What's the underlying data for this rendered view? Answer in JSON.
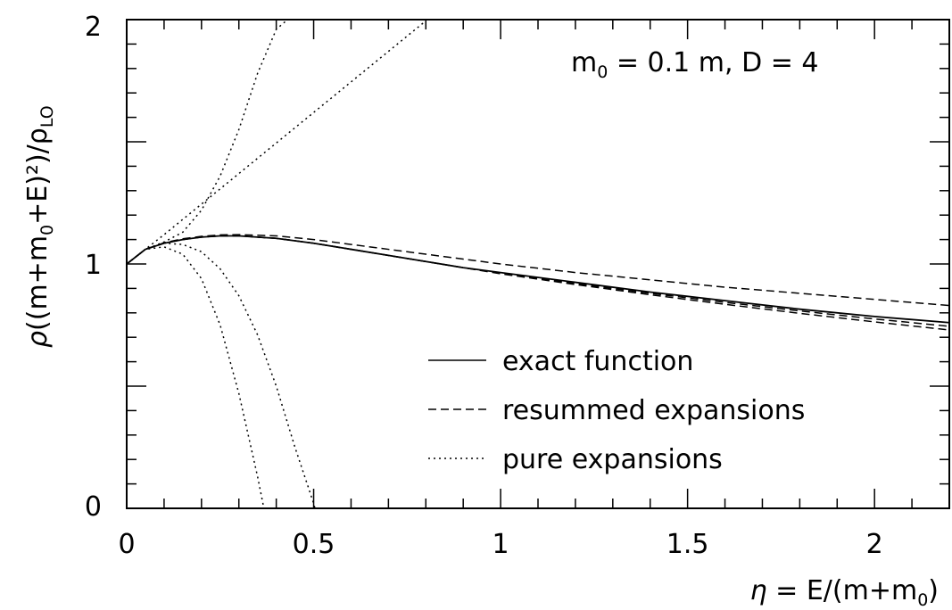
{
  "chart_data": {
    "type": "line",
    "title": "",
    "annotation": {
      "main": "m",
      "sub": "0",
      "rest": " = 0.1 m,  D = 4"
    },
    "xlabel": {
      "eta": "η",
      "before": " = E/(m+m",
      "sub": "0",
      "after": ")"
    },
    "ylabel": {
      "rho": "ρ",
      "before": "((m+m",
      "sub": "0",
      "after": "+E)²)/ρ",
      "lo": "LO"
    },
    "xlim": [
      0,
      2.2
    ],
    "ylim": [
      0,
      2
    ],
    "xticks": [
      0,
      0.5,
      1,
      1.5,
      2
    ],
    "xtick_labels": [
      "0",
      "0.5",
      "1",
      "1.5",
      "2"
    ],
    "yticks": [
      0,
      1,
      2
    ],
    "ytick_labels": [
      "0",
      "1",
      "2"
    ],
    "x_minor_step": 0.1,
    "y_minor_step": 0.1,
    "grid": false,
    "legend_placement": "bottom-right",
    "legend": [
      {
        "label": "exact function",
        "style": "solid"
      },
      {
        "label": "resummed expansions",
        "style": "dashed"
      },
      {
        "label": "pure expansions",
        "style": "dotted"
      }
    ],
    "series": [
      {
        "style": "solid",
        "x": [
          0,
          0.05,
          0.1,
          0.15,
          0.2,
          0.25,
          0.3,
          0.4,
          0.5,
          0.6,
          0.7,
          0.8,
          0.9,
          1.0,
          1.2,
          1.4,
          1.6,
          1.8,
          2.0,
          2.2
        ],
        "y": [
          1.0,
          1.06,
          1.085,
          1.1,
          1.11,
          1.115,
          1.115,
          1.105,
          1.085,
          1.06,
          1.035,
          1.01,
          0.985,
          0.965,
          0.925,
          0.885,
          0.85,
          0.815,
          0.785,
          0.76
        ]
      },
      {
        "style": "dashed",
        "x": [
          0,
          0.05,
          0.1,
          0.15,
          0.2,
          0.25,
          0.3,
          0.4,
          0.5,
          0.6,
          0.7,
          0.8,
          0.9,
          1.0,
          1.2,
          1.4,
          1.6,
          1.8,
          2.0,
          2.2
        ],
        "y": [
          1.0,
          1.06,
          1.087,
          1.103,
          1.113,
          1.119,
          1.12,
          1.115,
          1.1,
          1.08,
          1.06,
          1.04,
          1.02,
          1.0,
          0.965,
          0.935,
          0.905,
          0.88,
          0.855,
          0.83
        ]
      },
      {
        "style": "dashed",
        "x": [
          0,
          0.05,
          0.1,
          0.15,
          0.2,
          0.25,
          0.3,
          0.4,
          0.5,
          0.6,
          0.7,
          0.8,
          0.9,
          1.0,
          1.2,
          1.4,
          1.6,
          1.8,
          2.0,
          2.2
        ],
        "y": [
          1.0,
          1.06,
          1.085,
          1.1,
          1.11,
          1.115,
          1.115,
          1.105,
          1.085,
          1.06,
          1.035,
          1.01,
          0.985,
          0.962,
          0.92,
          0.88,
          0.843,
          0.808,
          0.775,
          0.745
        ]
      },
      {
        "style": "dashed",
        "x": [
          0,
          0.05,
          0.1,
          0.15,
          0.2,
          0.25,
          0.3,
          0.4,
          0.5,
          0.6,
          0.7,
          0.8,
          0.9,
          1.0,
          1.2,
          1.4,
          1.6,
          1.8,
          2.0,
          2.2
        ],
        "y": [
          1.0,
          1.06,
          1.085,
          1.1,
          1.11,
          1.115,
          1.115,
          1.105,
          1.085,
          1.06,
          1.035,
          1.01,
          0.985,
          0.96,
          0.916,
          0.874,
          0.835,
          0.798,
          0.763,
          0.73
        ]
      },
      {
        "style": "dotted",
        "x": [
          0,
          0.1,
          0.2,
          0.3,
          0.4,
          0.5,
          0.6,
          0.7,
          0.8
        ],
        "y": [
          1.0,
          1.12,
          1.245,
          1.37,
          1.495,
          1.62,
          1.745,
          1.87,
          1.995
        ]
      },
      {
        "style": "dotted",
        "x": [
          0,
          0.05,
          0.1,
          0.15,
          0.2,
          0.25,
          0.3,
          0.35,
          0.4,
          0.43
        ],
        "y": [
          1.0,
          1.06,
          1.09,
          1.13,
          1.22,
          1.36,
          1.55,
          1.78,
          1.96,
          2.0
        ]
      },
      {
        "style": "dotted",
        "x": [
          0,
          0.05,
          0.1,
          0.15,
          0.2,
          0.25,
          0.3,
          0.35,
          0.38,
          0.4,
          0.41
        ],
        "y": [
          1.0,
          1.06,
          1.07,
          1.04,
          0.94,
          0.75,
          0.47,
          0.13,
          -0.1,
          -0.35,
          -0.5
        ]
      },
      {
        "style": "dotted",
        "x": [
          0,
          0.05,
          0.1,
          0.15,
          0.2,
          0.25,
          0.3,
          0.35,
          0.4,
          0.45,
          0.5,
          0.52
        ],
        "y": [
          1.0,
          1.06,
          1.085,
          1.08,
          1.05,
          0.98,
          0.87,
          0.71,
          0.5,
          0.25,
          0.02,
          -0.1
        ]
      }
    ]
  }
}
